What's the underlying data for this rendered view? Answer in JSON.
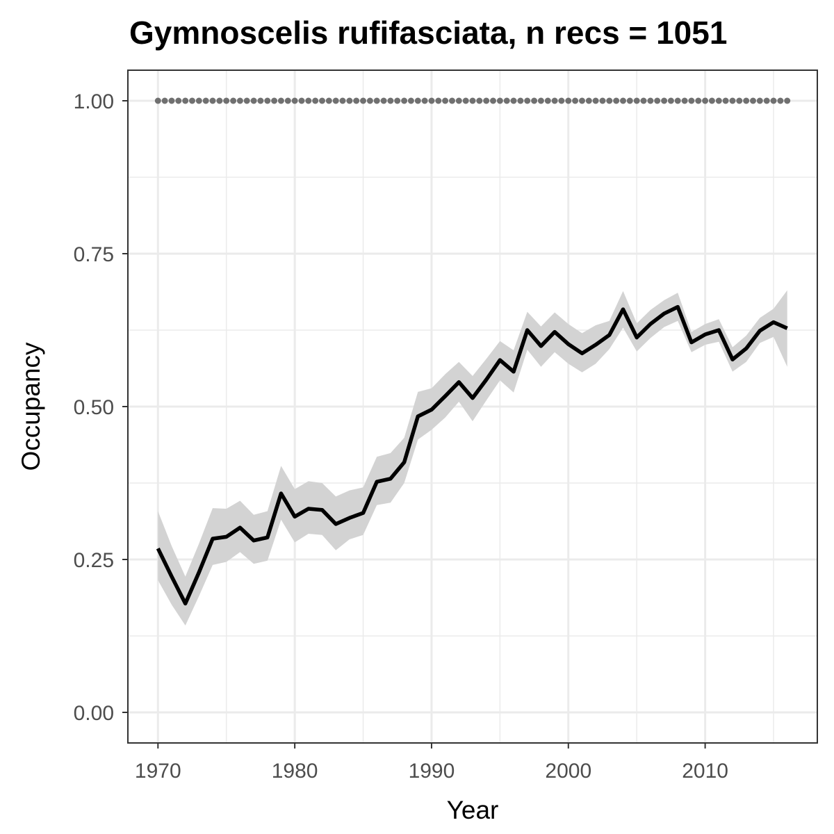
{
  "chart_data": {
    "type": "line",
    "title": "Gymnoscelis rufifasciata, n recs = 1051",
    "xlabel": "Year",
    "ylabel": "Occupancy",
    "xlim": [
      1967.8,
      2018.2
    ],
    "ylim": [
      -0.05,
      1.05
    ],
    "x_ticks": [
      1970,
      1980,
      1990,
      2000,
      2010
    ],
    "y_ticks": [
      0.0,
      0.25,
      0.5,
      0.75,
      1.0
    ],
    "y_tick_labels": [
      "0.00",
      "0.25",
      "0.50",
      "0.75",
      "1.00"
    ],
    "grid": true,
    "legend": "none",
    "colors": {
      "line": "#000000",
      "ribbon": "#d3d3d3",
      "reference_points": "#707070",
      "grid": "#ebebeb",
      "panel_border": "#333333"
    },
    "x": [
      1970,
      1971,
      1972,
      1973,
      1974,
      1975,
      1976,
      1977,
      1978,
      1979,
      1980,
      1981,
      1982,
      1983,
      1984,
      1985,
      1986,
      1987,
      1988,
      1989,
      1990,
      1991,
      1992,
      1993,
      1994,
      1995,
      1996,
      1997,
      1998,
      1999,
      2000,
      2001,
      2002,
      2003,
      2004,
      2005,
      2006,
      2007,
      2008,
      2009,
      2010,
      2011,
      2012,
      2013,
      2014,
      2015,
      2016
    ],
    "series": [
      {
        "values": [
          0.268,
          0.222,
          0.178,
          0.229,
          0.284,
          0.287,
          0.302,
          0.281,
          0.286,
          0.358,
          0.32,
          0.333,
          0.331,
          0.308,
          0.318,
          0.326,
          0.377,
          0.382,
          0.409,
          0.484,
          0.495,
          0.517,
          0.54,
          0.514,
          0.544,
          0.576,
          0.557,
          0.625,
          0.599,
          0.622,
          0.602,
          0.587,
          0.601,
          0.617,
          0.659,
          0.613,
          0.635,
          0.652,
          0.663,
          0.605,
          0.618,
          0.625,
          0.577,
          0.595,
          0.624,
          0.638,
          0.628
        ],
        "lower": [
          0.216,
          0.176,
          0.142,
          0.19,
          0.241,
          0.246,
          0.262,
          0.243,
          0.248,
          0.315,
          0.278,
          0.292,
          0.29,
          0.265,
          0.283,
          0.29,
          0.339,
          0.343,
          0.375,
          0.446,
          0.462,
          0.482,
          0.508,
          0.476,
          0.51,
          0.543,
          0.523,
          0.593,
          0.565,
          0.589,
          0.57,
          0.556,
          0.57,
          0.594,
          0.629,
          0.59,
          0.612,
          0.63,
          0.64,
          0.589,
          0.601,
          0.606,
          0.557,
          0.573,
          0.604,
          0.614,
          0.565
        ],
        "upper": [
          0.329,
          0.272,
          0.222,
          0.276,
          0.334,
          0.333,
          0.346,
          0.323,
          0.329,
          0.403,
          0.365,
          0.378,
          0.375,
          0.353,
          0.363,
          0.368,
          0.418,
          0.424,
          0.449,
          0.524,
          0.53,
          0.553,
          0.573,
          0.55,
          0.578,
          0.607,
          0.592,
          0.655,
          0.631,
          0.654,
          0.635,
          0.62,
          0.633,
          0.64,
          0.689,
          0.636,
          0.658,
          0.674,
          0.686,
          0.622,
          0.635,
          0.643,
          0.597,
          0.616,
          0.645,
          0.66,
          0.69
        ]
      }
    ],
    "reference_points": {
      "value": 1.0,
      "x_start": 1970,
      "x_end": 2016,
      "step": 0.5
    }
  }
}
